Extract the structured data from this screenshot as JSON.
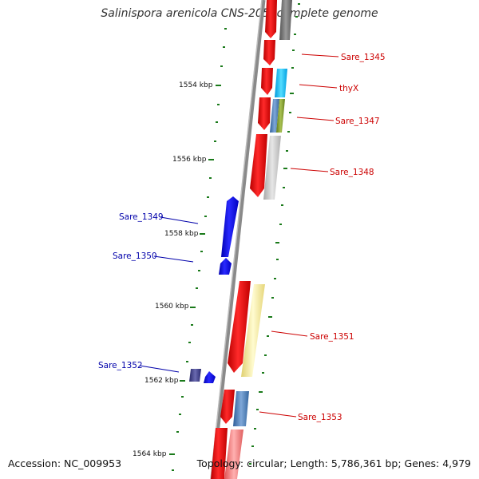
{
  "title": "Salinispora arenicola CNS-205, complete genome",
  "footer": {
    "accession": "Accession: NC_009953",
    "topology": "Topology: circular; Length: 5,786,361 bp; Genes: 4,979"
  },
  "scale_labels": [
    "1554 kbp",
    "1556 kbp",
    "1558 kbp",
    "1560 kbp",
    "1562 kbp",
    "1564 kbp"
  ],
  "gene_labels_right": [
    "Sare_1345",
    "thyX",
    "Sare_1347",
    "Sare_1348",
    "Sare_1351",
    "Sare_1353"
  ],
  "gene_labels_left": [
    "Sare_1349",
    "Sare_1350",
    "Sare_1352"
  ],
  "colors": {
    "forward_strand": "#ff0000",
    "reverse_strand": "#0000ff",
    "backbone": "#8a8a8a",
    "ticks": "#1a7a1a",
    "label_forward": "#cc0000",
    "label_reverse": "#0000aa"
  }
}
